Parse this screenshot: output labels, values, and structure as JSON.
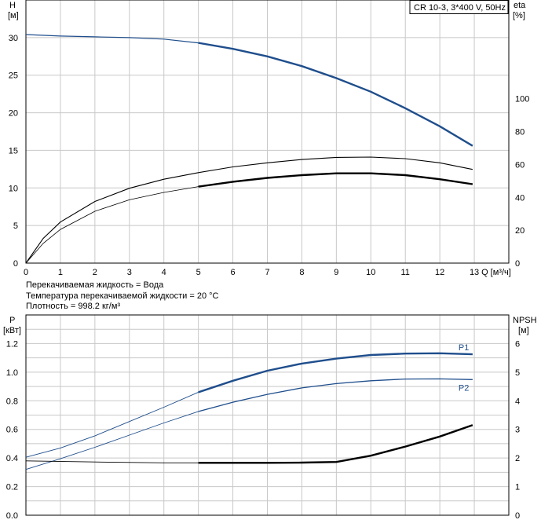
{
  "notes": {
    "liquid": "Перекачиваемая жидкость = Вода",
    "temperature": "Температура перекачиваемой жидкости = 20 °C",
    "density": "Плотность = 998.2 кг/м³"
  },
  "chart_data": [
    {
      "type": "line",
      "title": "CR 10-3, 3*400 V, 50Hz",
      "xlabel": "Q [м³/ч]",
      "ylabel": "H [м]",
      "ylabel2": "eta [%]",
      "xlim": [
        0,
        14
      ],
      "ylim": [
        0,
        35
      ],
      "ylim2": [
        0,
        160
      ],
      "x_ticks": [
        0,
        1,
        2,
        3,
        4,
        5,
        6,
        7,
        8,
        9,
        10,
        11,
        12,
        13
      ],
      "y_ticks": [
        0,
        5,
        10,
        15,
        20,
        25,
        30
      ],
      "y2_ticks": [
        0,
        20,
        40,
        60,
        80,
        100
      ],
      "grid": true,
      "series": [
        {
          "color": "#1f4e8c",
          "points": [
            [
              0,
              30.4
            ],
            [
              1,
              30.2
            ],
            [
              2,
              30.1
            ],
            [
              3,
              30.0
            ],
            [
              4,
              29.8
            ],
            [
              5,
              29.3
            ],
            [
              6,
              28.5
            ],
            [
              7,
              27.5
            ],
            [
              8,
              26.2
            ],
            [
              9,
              24.6
            ],
            [
              10,
              22.8
            ],
            [
              11,
              20.6
            ],
            [
              12,
              18.2
            ],
            [
              12.95,
              15.6
            ]
          ]
        },
        {
          "color": "#000000",
          "points": [
            [
              0,
              0
            ],
            [
              0.5,
              15
            ],
            [
              1,
              25
            ],
            [
              2,
              37.5
            ],
            [
              3,
              45.5
            ],
            [
              4,
              51
            ],
            [
              5,
              55
            ],
            [
              6,
              58.5
            ],
            [
              7,
              61
            ],
            [
              8,
              63
            ],
            [
              9,
              64.3
            ],
            [
              10,
              64.5
            ],
            [
              11,
              63.5
            ],
            [
              12,
              61
            ],
            [
              12.95,
              57
            ]
          ]
        },
        {
          "color": "#000000",
          "points": [
            [
              0,
              0
            ],
            [
              0.5,
              12
            ],
            [
              1,
              20.5
            ],
            [
              2,
              31.5
            ],
            [
              3,
              38.5
            ],
            [
              4,
              43
            ],
            [
              5,
              46.5
            ],
            [
              6,
              49.5
            ],
            [
              7,
              51.8
            ],
            [
              8,
              53.5
            ],
            [
              9,
              54.6
            ],
            [
              10,
              54.6
            ],
            [
              11,
              53.5
            ],
            [
              12,
              51
            ],
            [
              12.95,
              48
            ]
          ]
        }
      ]
    },
    {
      "type": "line",
      "xlabel": "",
      "ylabel": "P [кВт]",
      "ylabel2": "NPSH [м]",
      "xlim": [
        0,
        14
      ],
      "ylim": [
        0,
        1.4
      ],
      "ylim2": [
        0,
        7
      ],
      "y_ticks": [
        0.0,
        0.2,
        0.4,
        0.6,
        0.8,
        1.0,
        1.2
      ],
      "y_tick_labels": [
        "0.0",
        "0.2",
        "0.4",
        "0.6",
        "0.8",
        "1.0",
        "1.2"
      ],
      "y2_ticks": [
        0,
        1,
        2,
        3,
        4,
        5,
        6
      ],
      "grid": true,
      "series": [
        {
          "name": "P1",
          "color": "#1f4e8c",
          "points": [
            [
              0,
              0.405
            ],
            [
              1,
              0.47
            ],
            [
              2,
              0.555
            ],
            [
              3,
              0.655
            ],
            [
              4,
              0.755
            ],
            [
              5,
              0.86
            ],
            [
              6,
              0.94
            ],
            [
              7,
              1.01
            ],
            [
              8,
              1.06
            ],
            [
              9,
              1.095
            ],
            [
              10,
              1.12
            ],
            [
              11,
              1.13
            ],
            [
              12,
              1.132
            ],
            [
              12.95,
              1.125
            ]
          ]
        },
        {
          "name": "P2",
          "color": "#1f4e8c",
          "points": [
            [
              0,
              0.32
            ],
            [
              1,
              0.395
            ],
            [
              2,
              0.475
            ],
            [
              3,
              0.56
            ],
            [
              4,
              0.645
            ],
            [
              5,
              0.725
            ],
            [
              6,
              0.79
            ],
            [
              7,
              0.845
            ],
            [
              8,
              0.89
            ],
            [
              9,
              0.92
            ],
            [
              10,
              0.94
            ],
            [
              11,
              0.952
            ],
            [
              12,
              0.953
            ],
            [
              12.95,
              0.948
            ]
          ]
        },
        {
          "color": "#000000",
          "points": [
            [
              0,
              1.9
            ],
            [
              2,
              1.86
            ],
            [
              4,
              1.83
            ],
            [
              5,
              1.83
            ],
            [
              6,
              1.83
            ],
            [
              7,
              1.83
            ],
            [
              8,
              1.84
            ],
            [
              9,
              1.86
            ],
            [
              10,
              2.08
            ],
            [
              11,
              2.4
            ],
            [
              12,
              2.75
            ],
            [
              12.95,
              3.15
            ]
          ]
        }
      ]
    }
  ]
}
